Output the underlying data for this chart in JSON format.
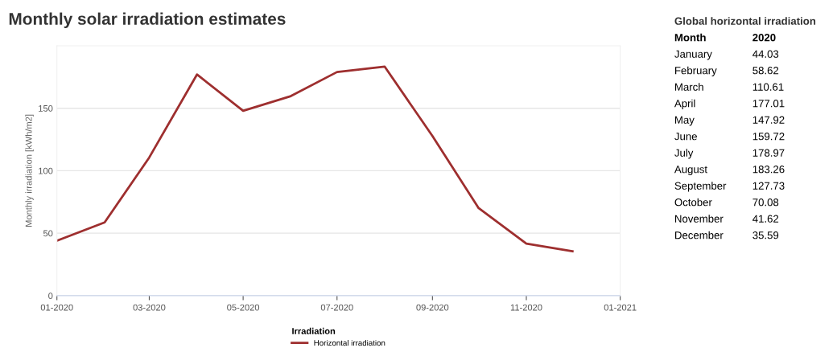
{
  "chart_data": [
    {
      "type": "line",
      "title": "Monthly solar irradiation estimates",
      "ylabel": "Monthly irradiation [kWh/m2]",
      "legend_title": "Irradiation",
      "x": [
        "2020-01",
        "2020-02",
        "2020-03",
        "2020-04",
        "2020-05",
        "2020-06",
        "2020-07",
        "2020-08",
        "2020-09",
        "2020-10",
        "2020-11",
        "2020-12"
      ],
      "series": [
        {
          "name": "Horizontal irradiation",
          "color": "#9e2f2f",
          "values": [
            44.03,
            58.62,
            110.61,
            177.01,
            147.92,
            159.72,
            178.97,
            183.26,
            127.73,
            70.08,
            41.62,
            35.59
          ]
        }
      ],
      "xlim": [
        "2020-01-01",
        "2021-01-01"
      ],
      "xticks": [
        {
          "value": "2020-01-01",
          "label": "01-2020"
        },
        {
          "value": "2020-03-01",
          "label": "03-2020"
        },
        {
          "value": "2020-05-01",
          "label": "05-2020"
        },
        {
          "value": "2020-07-01",
          "label": "07-2020"
        },
        {
          "value": "2020-09-01",
          "label": "09-2020"
        },
        {
          "value": "2020-11-01",
          "label": "11-2020"
        },
        {
          "value": "2021-01-01",
          "label": "01-2021"
        }
      ],
      "ylim": [
        0,
        200
      ],
      "yticks": [
        0,
        50,
        100,
        150
      ],
      "grid": "y",
      "legend": "bottom",
      "marker": "none",
      "line_style": "solid"
    },
    {
      "type": "other",
      "title": "Global horizontal irradiation",
      "data_labels": true,
      "annotations": [
        "Month",
        "2020"
      ],
      "categories": [
        "January",
        "February",
        "March",
        "April",
        "May",
        "June",
        "July",
        "August",
        "September",
        "October",
        "November",
        "December"
      ],
      "values": [
        44.03,
        58.62,
        110.61,
        177.01,
        147.92,
        159.72,
        178.97,
        183.26,
        127.73,
        70.08,
        41.62,
        35.59
      ]
    }
  ]
}
